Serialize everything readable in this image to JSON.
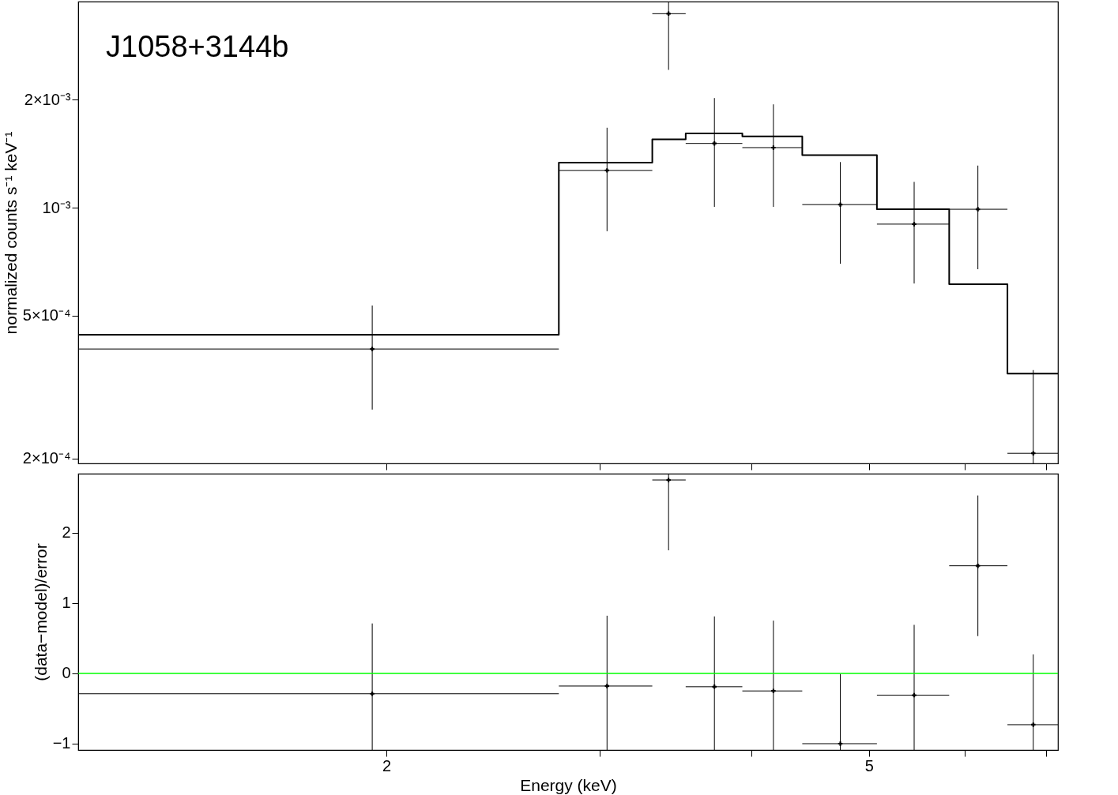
{
  "chart_data": [
    {
      "type": "step",
      "ylabel": "normalized counts s⁻¹ keV⁻¹",
      "annotations": [
        "J1058+3144b"
      ],
      "log": "xy",
      "grid": false,
      "tick_labels": "y",
      "xlim": [
        1.114,
        7.16
      ],
      "xticks": [
        {
          "value": 2,
          "label": null
        },
        {
          "value": 3,
          "label": null
        },
        {
          "value": 4,
          "label": null
        },
        {
          "value": 5,
          "label": null
        },
        {
          "value": 6,
          "label": null
        },
        {
          "value": 7,
          "label": null
        }
      ],
      "ylim": [
        0.000194,
        0.00375
      ],
      "yticks": [
        {
          "value": 0.0002,
          "label": "2×10⁻⁴"
        },
        {
          "value": 0.0005,
          "label": "5×10⁻⁴"
        },
        {
          "value": 0.001,
          "label": "10⁻³"
        },
        {
          "value": 0.002,
          "label": "2×10⁻³"
        }
      ],
      "series": [
        {
          "type": "scatter",
          "marker": "cross",
          "color": "#000000",
          "x": [
            1.947,
            3.041,
            3.418,
            3.729,
            4.171,
            4.736,
            5.449,
            6.15,
            6.832
          ],
          "values": [
            0.000404,
            0.00127,
            0.00347,
            0.00151,
            0.00147,
            0.00102,
            0.0009,
            0.00099,
            0.000207
          ],
          "errors": [
            [
              0.000274,
              0.000534
            ],
            [
              0.00086,
              0.00167
            ],
            [
              0.00242,
              0.00375
            ],
            [
              0.001005,
              0.00202
            ],
            [
              0.001005,
              0.00194
            ],
            [
              0.000698,
              0.00134
            ],
            [
              0.000615,
              0.00118
            ],
            [
              0.000674,
              0.00131
            ],
            [
              0.000194,
              0.000353
            ]
          ],
          "xerrors": [
            [
              1.114,
              2.775
            ],
            [
              2.775,
              3.314
            ],
            [
              3.314,
              3.531
            ],
            [
              3.531,
              3.932
            ],
            [
              3.932,
              4.406
            ],
            [
              4.406,
              5.077
            ],
            [
              5.077,
              5.824
            ],
            [
              5.824,
              6.505
            ],
            [
              6.505,
              7.16
            ]
          ]
        },
        {
          "type": "step",
          "color": "#000000",
          "x": [
            1.114,
            2.775,
            3.314,
            3.531,
            3.932,
            4.406,
            5.077,
            5.824,
            6.505,
            7.16
          ],
          "values": [
            0.000443,
            0.001335,
            0.00155,
            0.00161,
            0.00158,
            0.0014,
            0.00099,
            0.000612,
            0.000345,
            0.000345
          ]
        }
      ]
    },
    {
      "type": "scatter",
      "xlabel": "Energy (keV)",
      "ylabel": "(data−model)/error",
      "log": "x",
      "grid": false,
      "marker": "cross",
      "color": "#000000",
      "xlim": [
        1.114,
        7.16
      ],
      "xticks": [
        2,
        {
          "value": 3,
          "label": null
        },
        {
          "value": 4,
          "label": null
        },
        5,
        {
          "value": 6,
          "label": null
        },
        {
          "value": 7,
          "label": null
        }
      ],
      "ylim": [
        -1.09,
        2.84
      ],
      "yticks": [
        -1,
        0,
        1,
        2
      ],
      "x": [
        1.947,
        3.041,
        3.418,
        3.729,
        4.171,
        4.736,
        5.449,
        6.15,
        6.832
      ],
      "values": [
        -0.29,
        -0.18,
        2.75,
        -0.19,
        -0.25,
        -1.0,
        -0.31,
        1.53,
        -0.73
      ],
      "errors": [
        [
          -1.09,
          0.71
        ],
        [
          -1.09,
          0.82
        ],
        [
          1.75,
          2.84
        ],
        [
          -1.09,
          0.81
        ],
        [
          -1.09,
          0.75
        ],
        [
          -1.09,
          -0.01
        ],
        [
          -1.09,
          0.69
        ],
        [
          0.53,
          2.53
        ],
        [
          -1.09,
          0.27
        ]
      ],
      "xerrors": [
        [
          1.114,
          2.775
        ],
        [
          2.775,
          3.314
        ],
        [
          3.314,
          3.531
        ],
        [
          3.531,
          3.932
        ],
        [
          3.932,
          4.406
        ],
        [
          4.406,
          5.077
        ],
        [
          5.077,
          5.824
        ],
        [
          5.824,
          6.505
        ],
        [
          6.505,
          7.16
        ]
      ],
      "ref_lines": [
        {
          "axis": "y",
          "value": 0,
          "color": "#00ff00"
        }
      ]
    }
  ]
}
